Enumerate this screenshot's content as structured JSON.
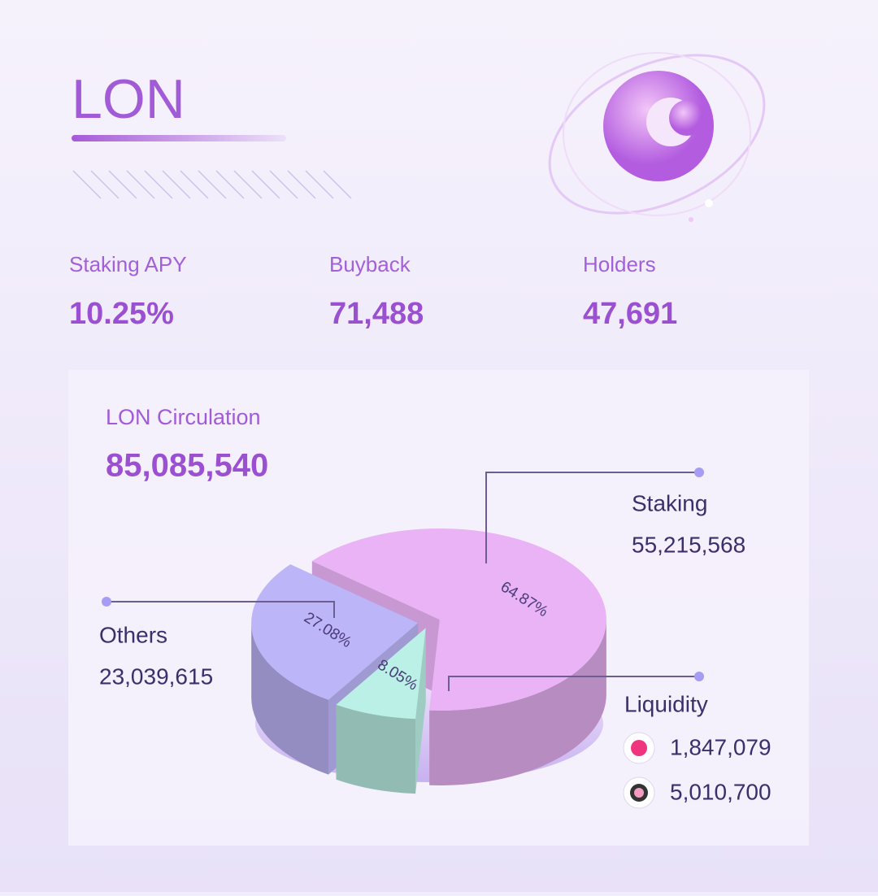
{
  "header": {
    "title": "LON"
  },
  "stats": [
    {
      "label": "Staking APY",
      "value": "10.25%"
    },
    {
      "label": "Buyback",
      "value": "71,488"
    },
    {
      "label": "Holders",
      "value": "47,691"
    }
  ],
  "circulation": {
    "label": "LON Circulation",
    "value": "85,085,540"
  },
  "chart_data": {
    "type": "pie",
    "categories": [
      "Staking",
      "Liquidity",
      "Others"
    ],
    "values": [
      64.87,
      8.05,
      27.08
    ],
    "value_labels": [
      "64.87%",
      "8.05%",
      "27.08%"
    ],
    "colors": [
      "#eab3f6",
      "#baf0e5",
      "#bcb5f8"
    ],
    "amounts": [
      "55,215,568",
      null,
      "23,039,615"
    ],
    "liquidity_amounts": [
      "1,847,079",
      "5,010,700"
    ]
  }
}
